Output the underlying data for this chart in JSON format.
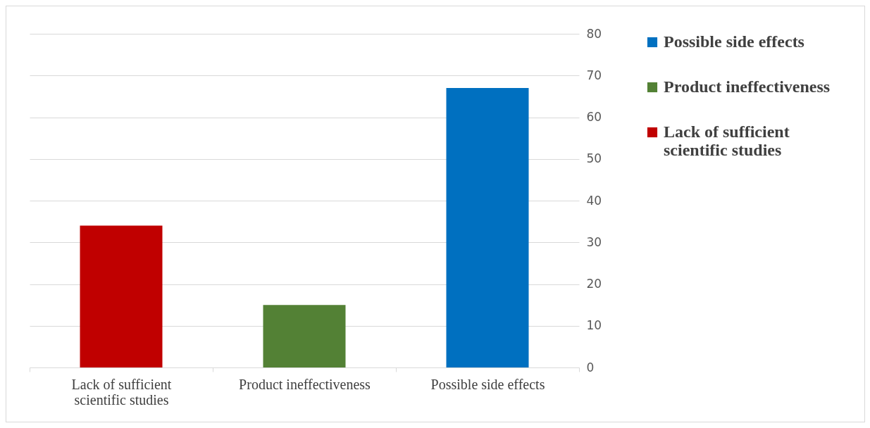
{
  "chart_data": {
    "type": "bar",
    "categories": [
      "Lack of sufficient scientific studies",
      "Product ineffectiveness",
      "Possible side effects"
    ],
    "series": [
      {
        "name": "Lack of sufficient scientific studies",
        "color": "#c00000",
        "values": [
          34,
          null,
          null
        ]
      },
      {
        "name": "Product ineffectiveness",
        "color": "#538135",
        "values": [
          null,
          15,
          null
        ]
      },
      {
        "name": "Possible side effects",
        "color": "#0070c0",
        "values": [
          null,
          null,
          67
        ]
      }
    ],
    "ylim": [
      0,
      80
    ],
    "yticks": [
      0,
      10,
      20,
      30,
      40,
      50,
      60,
      70,
      80
    ],
    "grid": "y",
    "legend": "right"
  }
}
